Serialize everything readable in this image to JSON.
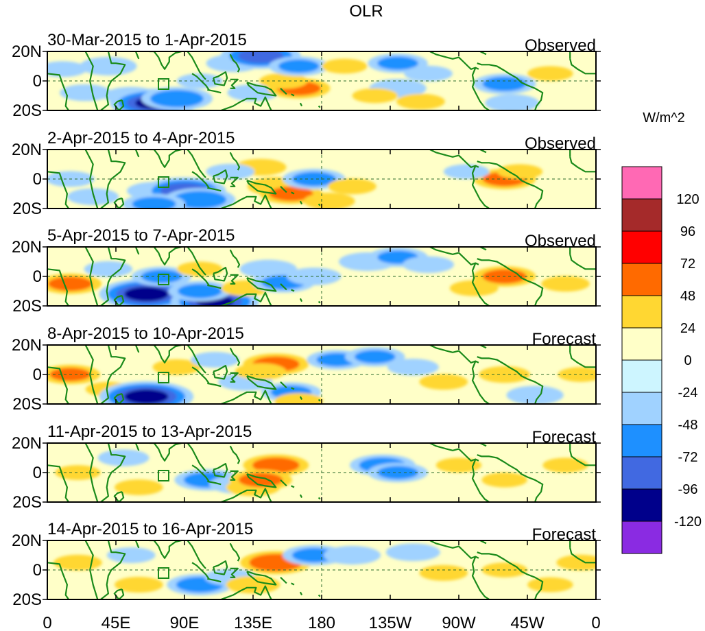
{
  "chart_data": {
    "type": "heatmap",
    "title": "OLR",
    "colorbar_units": "W/m^2",
    "colorbar_levels": [
      "120",
      "96",
      "72",
      "48",
      "24",
      "0",
      "-24",
      "-48",
      "-72",
      "-96",
      "-120"
    ],
    "colorbar_colors": [
      "#ff69b4",
      "#a52a2a",
      "#ff0000",
      "#ff6a00",
      "#ffd732",
      "#ffffc8",
      "#cdf5ff",
      "#a0d2ff",
      "#1e90ff",
      "#4169e1",
      "#00008b",
      "#8a2be2"
    ],
    "x_ticks": [
      "0",
      "45E",
      "90E",
      "135E",
      "180",
      "135W",
      "90W",
      "45W",
      "0"
    ],
    "y_ticks": [
      "20N",
      "0",
      "20S"
    ],
    "xlim": [
      0,
      360
    ],
    "ylim": [
      -20,
      20
    ],
    "panels": [
      {
        "period": "30-Mar-2015 to 1-Apr-2015",
        "type": "Observed"
      },
      {
        "period": "2-Apr-2015 to 4-Apr-2015",
        "type": "Observed"
      },
      {
        "period": "5-Apr-2015 to 7-Apr-2015",
        "type": "Observed"
      },
      {
        "period": "8-Apr-2015 to 10-Apr-2015",
        "type": "Forecast"
      },
      {
        "period": "11-Apr-2015 to 13-Apr-2015",
        "type": "Forecast"
      },
      {
        "period": "14-Apr-2015 to 16-Apr-2015",
        "type": "Forecast"
      }
    ],
    "anomaly_features": [
      [
        {
          "lon": 10,
          "lat": 8,
          "value": -30
        },
        {
          "lon": 25,
          "lat": -8,
          "value": -35
        },
        {
          "lon": 55,
          "lat": -10,
          "value": -40
        },
        {
          "lon": 70,
          "lat": -15,
          "value": -100
        },
        {
          "lon": 85,
          "lat": -12,
          "value": -70
        },
        {
          "lon": 40,
          "lat": 10,
          "value": -45
        },
        {
          "lon": 100,
          "lat": 0,
          "value": -25
        },
        {
          "lon": 122,
          "lat": 12,
          "value": -40
        },
        {
          "lon": 140,
          "lat": 17,
          "value": -85
        },
        {
          "lon": 135,
          "lat": -8,
          "value": -35
        },
        {
          "lon": 165,
          "lat": -5,
          "value": 55
        },
        {
          "lon": 155,
          "lat": 0,
          "value": 30
        },
        {
          "lon": 165,
          "lat": 10,
          "value": -50
        },
        {
          "lon": 195,
          "lat": 10,
          "value": 25
        },
        {
          "lon": 230,
          "lat": 12,
          "value": -50
        },
        {
          "lon": 250,
          "lat": 5,
          "value": -30
        },
        {
          "lon": 230,
          "lat": -5,
          "value": -45
        },
        {
          "lon": 215,
          "lat": -10,
          "value": 25
        },
        {
          "lon": 245,
          "lat": -14,
          "value": 30
        },
        {
          "lon": 300,
          "lat": -2,
          "value": -55
        },
        {
          "lon": 305,
          "lat": -15,
          "value": -40
        },
        {
          "lon": 330,
          "lat": 5,
          "value": 25
        }
      ],
      [
        {
          "lon": 15,
          "lat": 0,
          "value": -30
        },
        {
          "lon": 30,
          "lat": -12,
          "value": -35
        },
        {
          "lon": 70,
          "lat": -8,
          "value": -40
        },
        {
          "lon": 90,
          "lat": -8,
          "value": -90
        },
        {
          "lon": 100,
          "lat": -14,
          "value": -70
        },
        {
          "lon": 70,
          "lat": -17,
          "value": -55
        },
        {
          "lon": 140,
          "lat": 8,
          "value": 35
        },
        {
          "lon": 150,
          "lat": -5,
          "value": 45
        },
        {
          "lon": 160,
          "lat": -10,
          "value": 55
        },
        {
          "lon": 175,
          "lat": 0,
          "value": -55
        },
        {
          "lon": 185,
          "lat": -15,
          "value": 35
        },
        {
          "lon": 200,
          "lat": -5,
          "value": 30
        },
        {
          "lon": 300,
          "lat": 0,
          "value": 55
        },
        {
          "lon": 310,
          "lat": 5,
          "value": 25
        },
        {
          "lon": 275,
          "lat": 5,
          "value": -25
        },
        {
          "lon": 120,
          "lat": 5,
          "value": -30
        }
      ],
      [
        {
          "lon": 15,
          "lat": -5,
          "value": 55
        },
        {
          "lon": 40,
          "lat": 5,
          "value": -30
        },
        {
          "lon": 65,
          "lat": -12,
          "value": -110
        },
        {
          "lon": 75,
          "lat": 0,
          "value": -50
        },
        {
          "lon": 110,
          "lat": -17,
          "value": -100
        },
        {
          "lon": 100,
          "lat": -10,
          "value": -55
        },
        {
          "lon": 130,
          "lat": -8,
          "value": 30
        },
        {
          "lon": 145,
          "lat": 5,
          "value": -45
        },
        {
          "lon": 155,
          "lat": -4,
          "value": -55
        },
        {
          "lon": 175,
          "lat": 0,
          "value": -40
        },
        {
          "lon": 210,
          "lat": 10,
          "value": -45
        },
        {
          "lon": 230,
          "lat": 13,
          "value": -50
        },
        {
          "lon": 250,
          "lat": 8,
          "value": -35
        },
        {
          "lon": 300,
          "lat": 0,
          "value": 55
        },
        {
          "lon": 280,
          "lat": -8,
          "value": 30
        },
        {
          "lon": 340,
          "lat": -5,
          "value": 30
        },
        {
          "lon": 100,
          "lat": 5,
          "value": 25
        }
      ],
      [
        {
          "lon": 15,
          "lat": 0,
          "value": 50
        },
        {
          "lon": 40,
          "lat": -10,
          "value": 25
        },
        {
          "lon": 65,
          "lat": -15,
          "value": -110
        },
        {
          "lon": 85,
          "lat": 5,
          "value": 30
        },
        {
          "lon": 110,
          "lat": 10,
          "value": -30
        },
        {
          "lon": 130,
          "lat": -5,
          "value": -40
        },
        {
          "lon": 150,
          "lat": 7,
          "value": 60
        },
        {
          "lon": 140,
          "lat": 2,
          "value": 35
        },
        {
          "lon": 160,
          "lat": -12,
          "value": -50
        },
        {
          "lon": 165,
          "lat": -18,
          "value": 30
        },
        {
          "lon": 190,
          "lat": 10,
          "value": -50
        },
        {
          "lon": 215,
          "lat": 12,
          "value": -50
        },
        {
          "lon": 240,
          "lat": 5,
          "value": -35
        },
        {
          "lon": 260,
          "lat": -5,
          "value": 30
        },
        {
          "lon": 300,
          "lat": 0,
          "value": 35
        },
        {
          "lon": 320,
          "lat": -14,
          "value": -45
        },
        {
          "lon": 350,
          "lat": 0,
          "value": 25
        }
      ],
      [
        {
          "lon": 20,
          "lat": 0,
          "value": 25
        },
        {
          "lon": 50,
          "lat": 10,
          "value": -35
        },
        {
          "lon": 60,
          "lat": -10,
          "value": 30
        },
        {
          "lon": 105,
          "lat": -5,
          "value": -60
        },
        {
          "lon": 125,
          "lat": -8,
          "value": -45
        },
        {
          "lon": 150,
          "lat": 5,
          "value": 60
        },
        {
          "lon": 135,
          "lat": -10,
          "value": 40
        },
        {
          "lon": 140,
          "lat": -5,
          "value": 55
        },
        {
          "lon": 220,
          "lat": 5,
          "value": -60
        },
        {
          "lon": 230,
          "lat": 0,
          "value": -50
        },
        {
          "lon": 270,
          "lat": 5,
          "value": 25
        },
        {
          "lon": 300,
          "lat": -5,
          "value": 25
        },
        {
          "lon": 340,
          "lat": 5,
          "value": 25
        }
      ],
      [
        {
          "lon": 20,
          "lat": 5,
          "value": 30
        },
        {
          "lon": 55,
          "lat": 10,
          "value": -30
        },
        {
          "lon": 60,
          "lat": -10,
          "value": 30
        },
        {
          "lon": 100,
          "lat": -10,
          "value": -60
        },
        {
          "lon": 120,
          "lat": -5,
          "value": -35
        },
        {
          "lon": 150,
          "lat": 5,
          "value": 70
        },
        {
          "lon": 135,
          "lat": -10,
          "value": 40
        },
        {
          "lon": 175,
          "lat": 10,
          "value": -55
        },
        {
          "lon": 200,
          "lat": 10,
          "value": -45
        },
        {
          "lon": 240,
          "lat": 12,
          "value": -40
        },
        {
          "lon": 260,
          "lat": -2,
          "value": 30
        },
        {
          "lon": 300,
          "lat": 0,
          "value": 25
        },
        {
          "lon": 350,
          "lat": 5,
          "value": 30
        },
        {
          "lon": 330,
          "lat": -10,
          "value": 25
        }
      ]
    ]
  }
}
